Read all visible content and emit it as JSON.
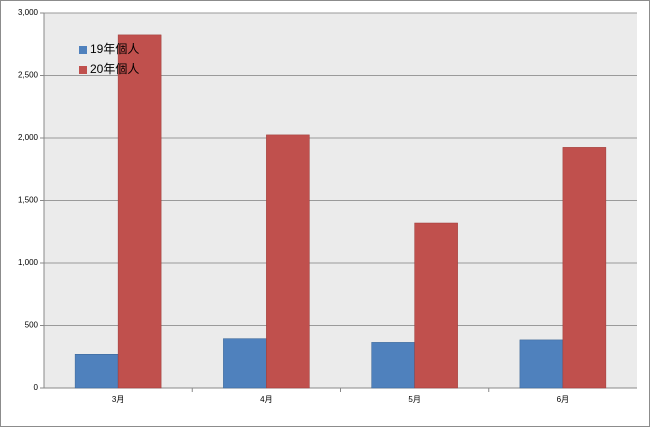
{
  "chart_data": {
    "type": "bar",
    "categories": [
      "3月",
      "4月",
      "5月",
      "6月"
    ],
    "series": [
      {
        "name": "19年個人",
        "color": "#4f81bd",
        "values": [
          270,
          395,
          365,
          385
        ]
      },
      {
        "name": "20年個人",
        "color": "#c0504d",
        "values": [
          2825,
          2025,
          1320,
          1925
        ]
      }
    ],
    "ylim": [
      0,
      3000
    ],
    "yticks": [
      0,
      500,
      {
        "value": 1000,
        "label": "1,000"
      },
      {
        "value": 1500,
        "label": "1,500"
      },
      {
        "value": 2000,
        "label": "2,000"
      },
      {
        "value": 2500,
        "label": "2,500"
      },
      {
        "value": 3000,
        "label": "3,000"
      }
    ],
    "grid": true,
    "legend": "upper-left"
  }
}
